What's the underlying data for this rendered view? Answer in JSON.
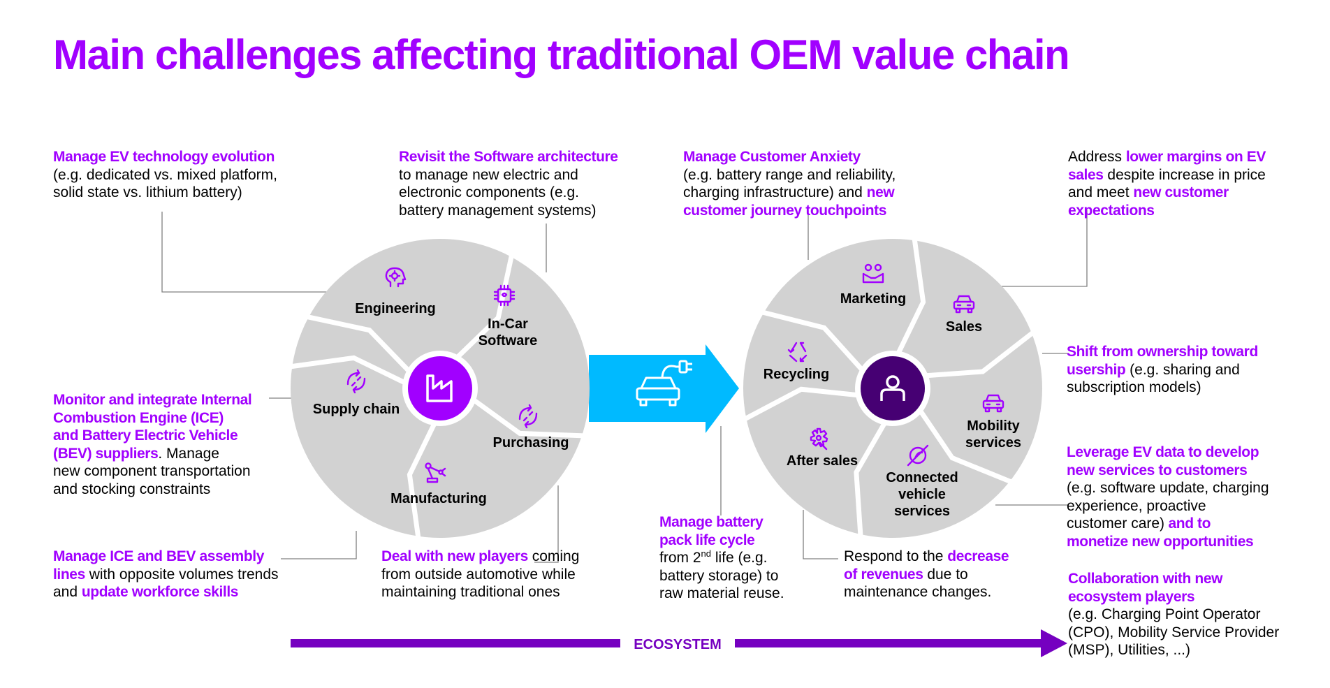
{
  "title": "Main challenges affecting traditional OEM value chain",
  "colors": {
    "accent": "#a100ff",
    "dark_purple": "#460073",
    "segment_gray": "#d2d2d2",
    "arrow_blue": "#00baff",
    "ecosystem_bar": "#7500c0",
    "connector": "#808080"
  },
  "oem_wheel": {
    "center_icon": "factory-icon",
    "segments": [
      {
        "label_1": "Engineering",
        "label_2": "",
        "icon": "brain-gear-icon"
      },
      {
        "label_1": "In-Car",
        "label_2": "Software",
        "icon": "chip-icon"
      },
      {
        "label_1": "Purchasing",
        "label_2": "",
        "icon": "exchange-icon"
      },
      {
        "label_1": "Manufacturing",
        "label_2": "",
        "icon": "robot-arm-icon"
      },
      {
        "label_1": "Supply chain",
        "label_2": "",
        "icon": "exchange-icon"
      }
    ]
  },
  "transition_arrow": {
    "icon": "electric-car-plug-icon"
  },
  "customer_wheel": {
    "center_icon": "user-icon",
    "segments": [
      {
        "label_1": "Marketing",
        "label_2": "",
        "icon": "people-icon"
      },
      {
        "label_1": "Sales",
        "label_2": "",
        "icon": "car-icon"
      },
      {
        "label_1": "Mobility",
        "label_2": "services",
        "icon": "car-icon"
      },
      {
        "label_1": "Connected",
        "label_2": "vehicle",
        "label_3": "services",
        "icon": "no-signal-icon"
      },
      {
        "label_1": "After sales",
        "label_2": "",
        "icon": "gear-wrench-icon"
      },
      {
        "label_1": "Recycling",
        "label_2": "",
        "icon": "recycle-icon"
      }
    ]
  },
  "notes": {
    "ev_tech": {
      "h": "Manage EV technology evolution",
      "t1": "(e.g. dedicated vs. mixed platform,",
      "t2": "solid state vs. lithium battery)"
    },
    "software": {
      "h": "Revisit the Software architecture",
      "t1": "to manage new electric and",
      "t2": "electronic components (e.g.",
      "t3": "battery management systems)"
    },
    "ice": {
      "h1": "Monitor and integrate Internal",
      "h2": "Combustion Engine (ICE)",
      "h3": "and Battery Electric Vehicle",
      "h4": "(BEV) suppliers",
      "t1": ". Manage",
      "t2": "new component transportation",
      "t3": "and stocking constraints"
    },
    "assembly": {
      "h1": "Manage ICE and BEV assembly",
      "h2": "lines",
      "t1": " with opposite volumes trends",
      "t2": "and ",
      "h3": "update workforce skills"
    },
    "players": {
      "h": "Deal with new players",
      "t1": " coming",
      "t2": "from outside automotive while",
      "t3": "maintaining traditional ones"
    },
    "anxiety": {
      "h": "Manage Customer Anxiety",
      "t1": "(e.g. battery range and reliability,",
      "t2": "charging infrastructure) and ",
      "h2": "new",
      "h3": "customer journey touchpoints"
    },
    "margins": {
      "t1": "Address ",
      "h1": "lower margins on EV",
      "h2": "sales",
      "t2": " despite increase in price",
      "t3": "and meet ",
      "h3": "new customer",
      "h4": "expectations"
    },
    "usership": {
      "h1": "Shift from ownership toward",
      "h2": "usership",
      "t1": " (e.g. sharing and",
      "t2": "subscription models)"
    },
    "ev_data": {
      "h1": "Leverage EV data to develop",
      "h2": "new services to customers",
      "t1": "(e.g. software update, charging",
      "t2": "experience, proactive",
      "t3": "customer care)",
      "h3": " and to",
      "h4": "monetize new opportunities"
    },
    "battery": {
      "h1": "Manage battery",
      "h2": "pack life cycle",
      "t1": "from 2",
      "sup": "nd",
      "t2": " life (e.g.",
      "t3": "battery storage) to",
      "t4": "raw material reuse."
    },
    "revenues": {
      "t1": "Respond to the ",
      "h1": "decrease",
      "h2": "of revenues",
      "t2": " due to",
      "t3": "maintenance changes."
    },
    "collab": {
      "h1": "Collaboration with new",
      "h2": "ecosystem players",
      "t1": "(e.g. Charging Point Operator",
      "t2": "(CPO), Mobility Service Provider",
      "t3": "(MSP), Utilities, ...)"
    }
  },
  "ecosystem": {
    "label": "ECOSYSTEM"
  }
}
